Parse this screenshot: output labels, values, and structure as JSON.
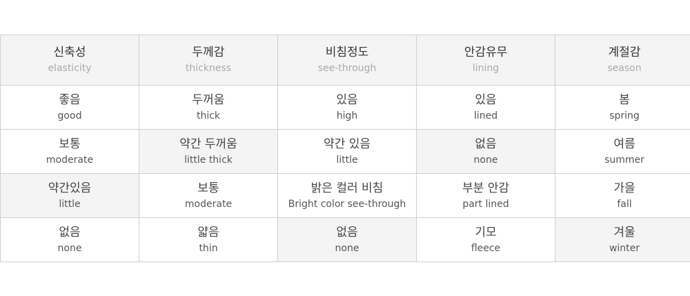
{
  "headers": [
    {
      "ko": "신축성",
      "en": "elasticity"
    },
    {
      "ko": "두께감",
      "en": "thickness"
    },
    {
      "ko": "비침정도",
      "en": "see-through"
    },
    {
      "ko": "안감유무",
      "en": "lining"
    },
    {
      "ko": "계절감",
      "en": "season"
    }
  ],
  "rows": [
    [
      {
        "ko": "좋음",
        "en": "good",
        "selected": false
      },
      {
        "ko": "두꺼움",
        "en": "thick",
        "selected": false
      },
      {
        "ko": "있음",
        "en": "high",
        "selected": false
      },
      {
        "ko": "있음",
        "en": "lined",
        "selected": false
      },
      {
        "ko": "봄",
        "en": "spring",
        "selected": false
      }
    ],
    [
      {
        "ko": "보통",
        "en": "moderate",
        "selected": false
      },
      {
        "ko": "약간 두꺼움",
        "en": "little thick",
        "selected": true
      },
      {
        "ko": "약간 있음",
        "en": "little",
        "selected": false
      },
      {
        "ko": "없음",
        "en": "none",
        "selected": true
      },
      {
        "ko": "여름",
        "en": "summer",
        "selected": false
      }
    ],
    [
      {
        "ko": "약간있음",
        "en": "little",
        "selected": true
      },
      {
        "ko": "보통",
        "en": "moderate",
        "selected": false
      },
      {
        "ko": "밝은 컬러 비침",
        "en": "Bright color see-through",
        "selected": false
      },
      {
        "ko": "부분 안감",
        "en": "part lined",
        "selected": false
      },
      {
        "ko": "가을",
        "en": "fall",
        "selected": false
      }
    ],
    [
      {
        "ko": "없음",
        "en": "none",
        "selected": false
      },
      {
        "ko": "얇음",
        "en": "thin",
        "selected": false
      },
      {
        "ko": "없음",
        "en": "none",
        "selected": true
      },
      {
        "ko": "기모",
        "en": "fleece",
        "selected": false
      },
      {
        "ko": "겨울",
        "en": "winter",
        "selected": true
      }
    ]
  ],
  "colors": {
    "border": "#cfcfcf",
    "selected_bg": "#f4f4f4",
    "header_bg": "#f4f4f4"
  }
}
